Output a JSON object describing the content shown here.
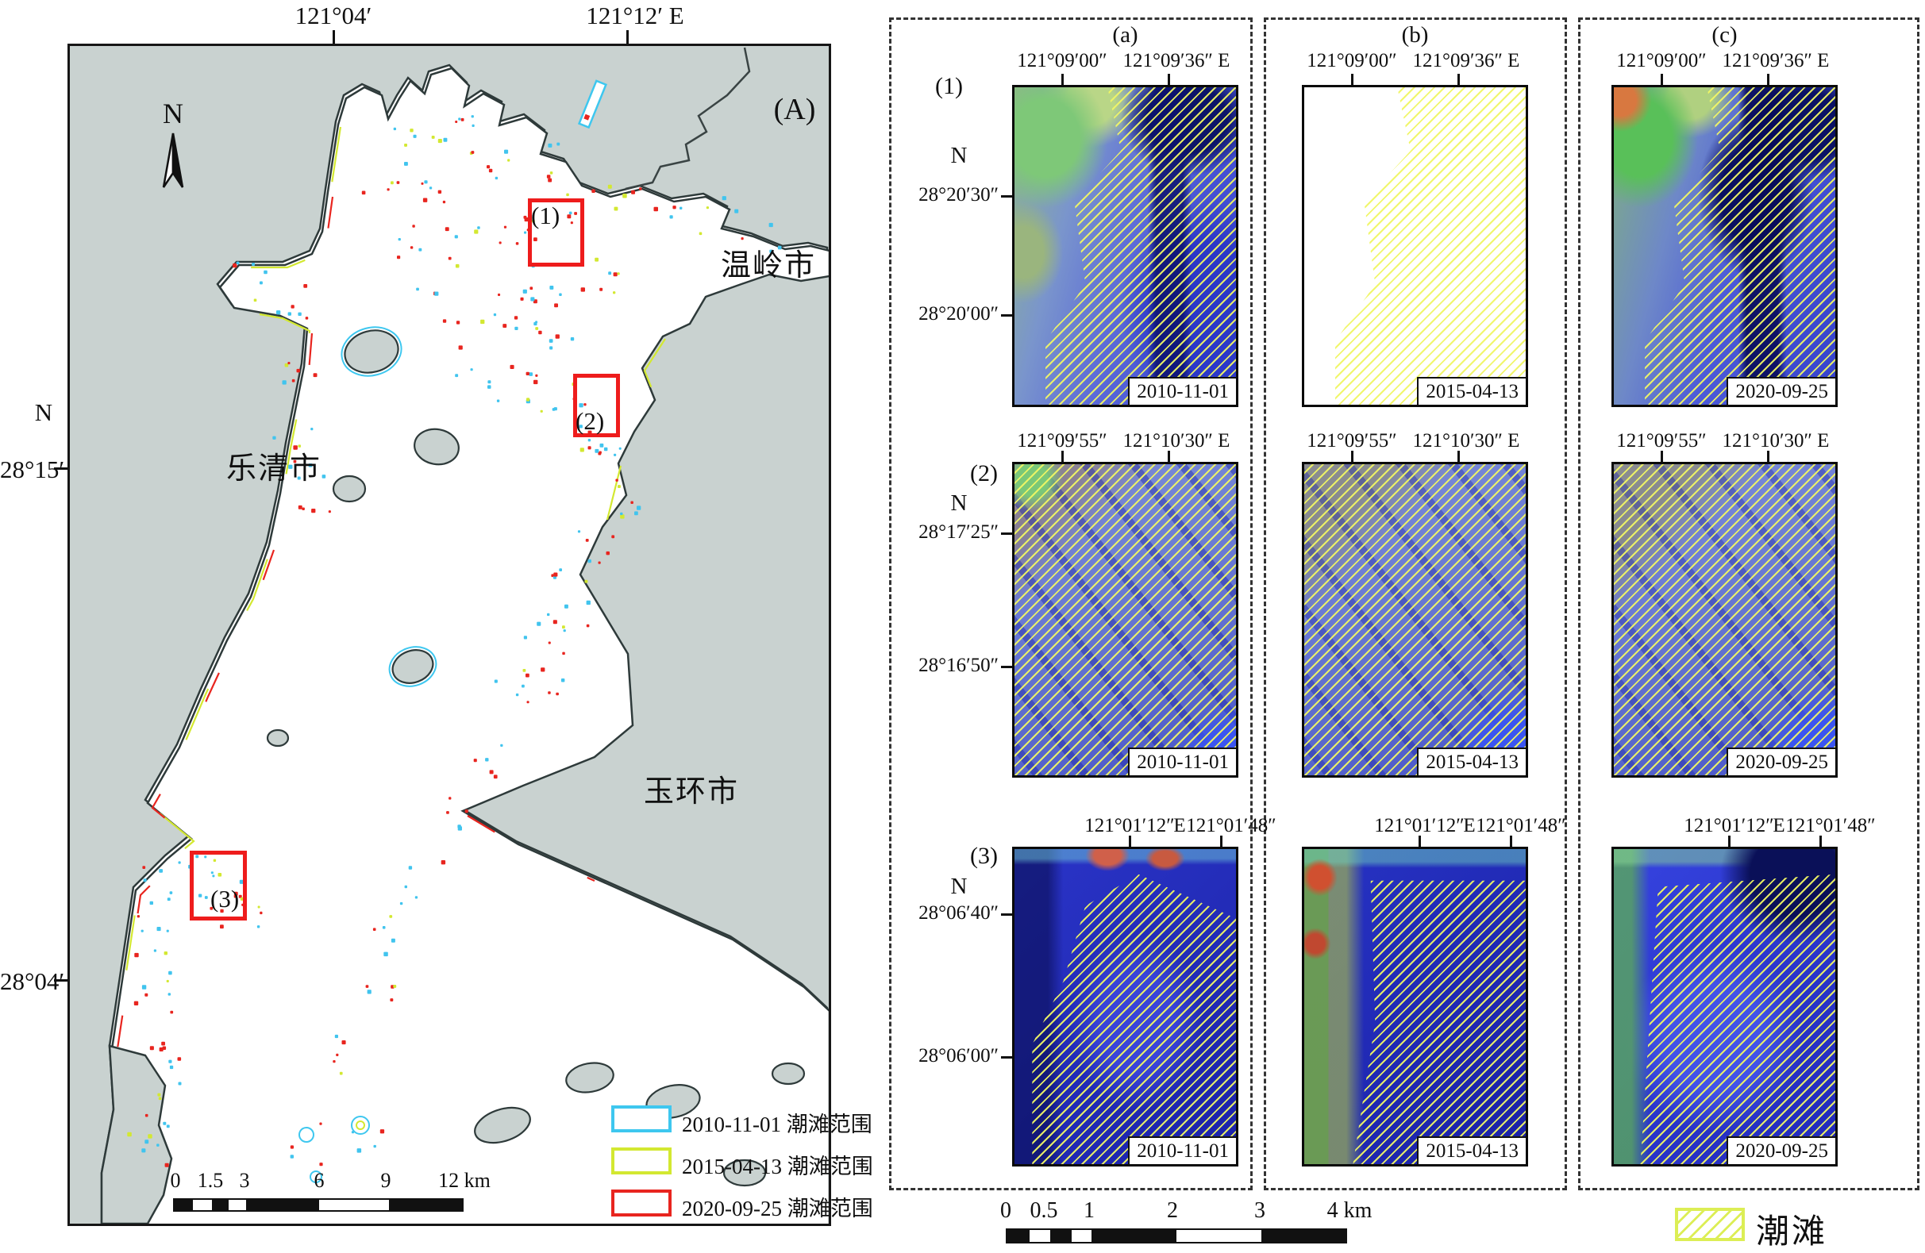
{
  "main_map": {
    "frame_tag": "(A)",
    "axis_top": [
      "121°04′",
      "121°12′ E"
    ],
    "axis_left_label": "N",
    "axis_left": [
      "28°15′",
      "28°04′"
    ],
    "compass_label": "N",
    "cities": {
      "wenling": "温岭市",
      "yueqing": "乐清市",
      "yuhuan": "玉环市"
    },
    "inset_tags": [
      "(1)",
      "(2)",
      "(3)"
    ],
    "legend": [
      {
        "label": "2010-11-01 潮滩范围",
        "color": "#3ec7ef"
      },
      {
        "label": "2015-04-13 潮滩范围",
        "color": "#d3e831"
      },
      {
        "label": "2020-09-25 潮滩范围",
        "color": "#e8251f"
      }
    ],
    "scalebar_ticks": [
      "0",
      "1.5",
      "3",
      "6",
      "9",
      "12 km"
    ]
  },
  "detail": {
    "columns": [
      {
        "header": "(a)",
        "date": "2010-11-01"
      },
      {
        "header": "(b)",
        "date": "2015-04-13"
      },
      {
        "header": "(c)",
        "date": "2020-09-25"
      }
    ],
    "rows": [
      {
        "tag": "(1)",
        "north": "N",
        "lon_left": "121°09′00″",
        "lon_right": "121°09′36″ E",
        "lat_top": "28°20′30″",
        "lat_bottom": "28°20′00″"
      },
      {
        "tag": "(2)",
        "north": "N",
        "lon_left": "121°09′55″",
        "lon_right": "121°10′30″ E",
        "lat_top": "28°17′25″",
        "lat_bottom": "28°16′50″"
      },
      {
        "tag": "(3)",
        "north": "N",
        "lon_left": "121°01′12″",
        "lon_e": "E",
        "lon_right": "121°01′48″",
        "lat_top": "28°06′40″",
        "lat_bottom": "28°06′00″"
      }
    ]
  },
  "bottom_bar": {
    "scalebar_ticks": [
      "0",
      "0.5",
      "1",
      "2",
      "3",
      "4 km"
    ],
    "tidal_legend_label": "潮滩",
    "hatch_color": "#dcee55"
  }
}
